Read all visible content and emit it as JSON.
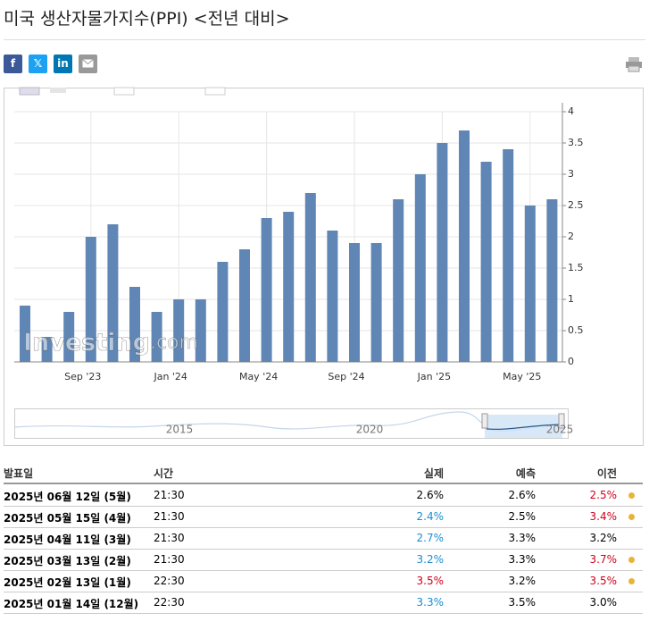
{
  "header": {
    "title": "미국 생산자물가지수(PPI) <전년 대비>"
  },
  "share": [
    "f",
    "𝕏",
    "in"
  ],
  "chart_data": {
    "type": "bar",
    "color": "#5f86b4",
    "watermark": "Investing",
    "watermark_suffix": ".com",
    "categories": [
      null,
      null,
      null,
      "Sep '23",
      null,
      null,
      null,
      "Jan '24",
      null,
      null,
      null,
      "May '24",
      null,
      null,
      null,
      "Sep '24",
      null,
      null,
      null,
      "Jan '25",
      null,
      null,
      null,
      "May '25",
      null
    ],
    "values": [
      0.9,
      0.4,
      0.8,
      2.0,
      2.2,
      1.2,
      0.8,
      1.0,
      1.0,
      1.6,
      1.8,
      2.3,
      2.4,
      2.7,
      2.1,
      1.9,
      1.9,
      2.6,
      3.0,
      3.5,
      3.7,
      3.2,
      3.4,
      2.5,
      2.6
    ],
    "ylim": [
      0,
      4
    ],
    "yticks": [
      0,
      0.5,
      1,
      1.5,
      2,
      2.5,
      3,
      3.5,
      4
    ],
    "grid": true,
    "navigator_labels": [
      "2015",
      "2020",
      "2025"
    ]
  },
  "table": {
    "columns": [
      "발표일",
      "시간",
      "실제",
      "예측",
      "이전"
    ],
    "rows": [
      {
        "date": "2025년 06월 12일 (5월)",
        "time": "21:30",
        "actual": "2.6%",
        "actual_color": "#000000",
        "forecast": "2.6%",
        "previous": "2.5%",
        "previous_color": "#d0021b",
        "dot": true
      },
      {
        "date": "2025년 05월 15일 (4월)",
        "time": "21:30",
        "actual": "2.4%",
        "actual_color": "#1a8fd0",
        "forecast": "2.5%",
        "previous": "3.4%",
        "previous_color": "#d0021b",
        "dot": true
      },
      {
        "date": "2025년 04월 11일 (3월)",
        "time": "21:30",
        "actual": "2.7%",
        "actual_color": "#1a8fd0",
        "forecast": "3.3%",
        "previous": "3.2%",
        "previous_color": "#000000",
        "dot": false
      },
      {
        "date": "2025년 03월 13일 (2월)",
        "time": "21:30",
        "actual": "3.2%",
        "actual_color": "#1a8fd0",
        "forecast": "3.3%",
        "previous": "3.7%",
        "previous_color": "#d0021b",
        "dot": true
      },
      {
        "date": "2025년 02월 13일 (1월)",
        "time": "22:30",
        "actual": "3.5%",
        "actual_color": "#d0021b",
        "forecast": "3.2%",
        "previous": "3.5%",
        "previous_color": "#d0021b",
        "dot": true
      },
      {
        "date": "2025년 01월 14일 (12월)",
        "time": "22:30",
        "actual": "3.3%",
        "actual_color": "#1a8fd0",
        "forecast": "3.5%",
        "previous": "3.0%",
        "previous_color": "#000000",
        "dot": false
      }
    ]
  }
}
